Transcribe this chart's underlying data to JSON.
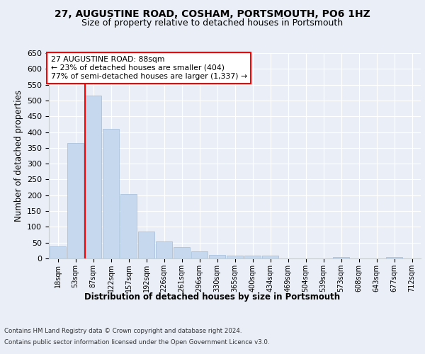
{
  "title": "27, AUGUSTINE ROAD, COSHAM, PORTSMOUTH, PO6 1HZ",
  "subtitle": "Size of property relative to detached houses in Portsmouth",
  "xlabel": "Distribution of detached houses by size in Portsmouth",
  "ylabel": "Number of detached properties",
  "categories": [
    "18sqm",
    "53sqm",
    "87sqm",
    "122sqm",
    "157sqm",
    "192sqm",
    "226sqm",
    "261sqm",
    "296sqm",
    "330sqm",
    "365sqm",
    "400sqm",
    "434sqm",
    "469sqm",
    "504sqm",
    "539sqm",
    "573sqm",
    "608sqm",
    "643sqm",
    "677sqm",
    "712sqm"
  ],
  "values": [
    37,
    365,
    515,
    410,
    205,
    85,
    53,
    35,
    22,
    12,
    10,
    10,
    8,
    0,
    0,
    0,
    5,
    0,
    0,
    5,
    0
  ],
  "bar_color": "#c5d8ed",
  "bar_edge_color": "#a0bcd8",
  "red_line_index": 2,
  "annotation_text": "27 AUGUSTINE ROAD: 88sqm\n← 23% of detached houses are smaller (404)\n77% of semi-detached houses are larger (1,337) →",
  "annotation_box_color": "white",
  "annotation_box_edge_color": "red",
  "ylim": [
    0,
    650
  ],
  "yticks": [
    0,
    50,
    100,
    150,
    200,
    250,
    300,
    350,
    400,
    450,
    500,
    550,
    600,
    650
  ],
  "background_color": "#eaeff7",
  "plot_bg_color": "#eaeff7",
  "footer_line1": "Contains HM Land Registry data © Crown copyright and database right 2024.",
  "footer_line2": "Contains public sector information licensed under the Open Government Licence v3.0.",
  "title_fontsize": 10,
  "subtitle_fontsize": 9,
  "xlabel_fontsize": 8.5,
  "ylabel_fontsize": 8.5
}
